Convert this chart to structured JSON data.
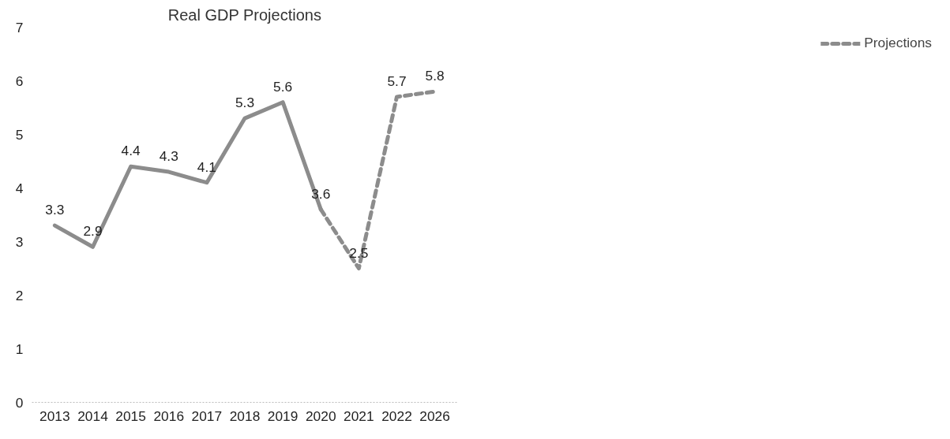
{
  "chart_data": {
    "type": "line",
    "title": "Real GDP Projections",
    "categories": [
      "2013",
      "2014",
      "2015",
      "2016",
      "2017",
      "2018",
      "2019",
      "2020",
      "2021",
      "2022",
      "2026"
    ],
    "ylim": [
      0,
      7
    ],
    "yticks": [
      0,
      1,
      2,
      3,
      4,
      5,
      6,
      7
    ],
    "grid": false,
    "legend": "right",
    "marker": "none",
    "series": [
      {
        "color": "#8c8c8c",
        "line_style": "solid",
        "values": [
          3.3,
          2.9,
          4.4,
          4.3,
          4.1,
          5.3,
          5.6,
          3.6,
          null,
          null,
          null
        ],
        "value_labels": [
          "3.3",
          "2.9",
          "4.4",
          "4.3",
          "4.1",
          "5.3",
          "5.6",
          "3.6",
          null,
          null,
          null
        ]
      },
      {
        "name": "Projections",
        "color": "#8c8c8c",
        "line_style": "dashed",
        "values": [
          null,
          null,
          null,
          null,
          null,
          null,
          null,
          3.6,
          2.5,
          5.7,
          5.8
        ],
        "value_labels": [
          null,
          null,
          null,
          null,
          null,
          null,
          null,
          null,
          "2.5",
          "5.7",
          "5.8"
        ]
      }
    ]
  }
}
